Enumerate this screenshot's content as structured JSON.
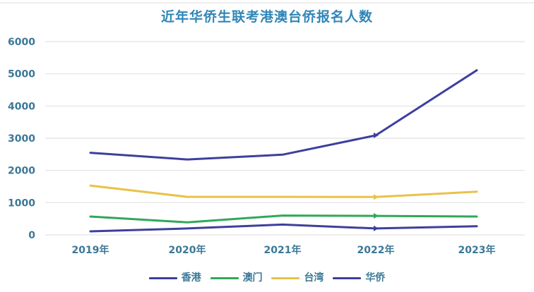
{
  "chart_data": {
    "type": "line",
    "title": "近年华侨生联考港澳台侨报名人数",
    "xlabel": "",
    "ylabel": "",
    "categories": [
      "2019年",
      "2020年",
      "2021年",
      "2022年",
      "2023年"
    ],
    "y_ticks": [
      "0",
      "1000",
      "2000",
      "3000",
      "4000",
      "5000",
      "6000"
    ],
    "ylim": [
      0,
      6000
    ],
    "grid": true,
    "legend_position": "bottom",
    "series": [
      {
        "name": "香港",
        "color": "#3d3f9e",
        "values": [
          110,
          200,
          320,
          200,
          270
        ]
      },
      {
        "name": "澳门",
        "color": "#2fa85a",
        "values": [
          570,
          390,
          600,
          590,
          570
        ]
      },
      {
        "name": "台湾",
        "color": "#e8c24a",
        "values": [
          1530,
          1180,
          1180,
          1175,
          1340
        ]
      },
      {
        "name": "华侨",
        "color": "#3d3f9e",
        "values": [
          2550,
          2340,
          2490,
          3090,
          5110
        ]
      }
    ]
  },
  "legend": [
    {
      "label": "香港",
      "color": "#3d3f9e"
    },
    {
      "label": "澳门",
      "color": "#2fa85a"
    },
    {
      "label": "台湾",
      "color": "#e8c24a"
    },
    {
      "label": "华侨",
      "color": "#3d3f9e"
    }
  ]
}
